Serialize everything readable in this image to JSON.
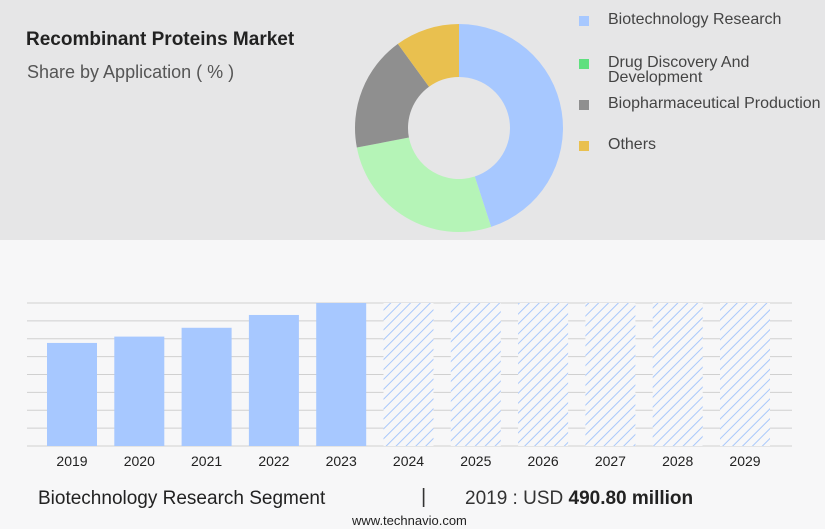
{
  "title": "Recombinant Proteins Market",
  "subtitle": "Share by Application ( % )",
  "footer": {
    "segment": "Biotechnology Research Segment",
    "divider": "|",
    "value_prefix": "2019 : USD",
    "value": "490.80 million",
    "url": "www.technavio.com"
  },
  "colors": {
    "biotech": "#a7c8ff",
    "drug": "#b5f4b7",
    "biopharma": "#8f8f8f",
    "others": "#e9c04f",
    "forecast_hatch": "#a9c8fb"
  },
  "chart_data": [
    {
      "type": "pie",
      "style": "donut",
      "legend_position": "right",
      "series": [
        {
          "name": "Biotechnology Research",
          "value": 45,
          "color": "#a7c8ff",
          "legend_swatch": "#a7c8ff"
        },
        {
          "name": "Drug Discovery And Development",
          "value": 27,
          "color": "#b5f4b7",
          "legend_swatch": "#5fe07f"
        },
        {
          "name": "Biopharmaceutical Production",
          "value": 18,
          "color": "#8f8f8f",
          "legend_swatch": "#8f8f8f"
        },
        {
          "name": "Others",
          "value": 10,
          "color": "#e9c04f",
          "legend_swatch": "#e9c04f"
        }
      ]
    },
    {
      "type": "bar",
      "categories": [
        "2019",
        "2020",
        "2021",
        "2022",
        "2023",
        "2024",
        "2025",
        "2026",
        "2027",
        "2028",
        "2029"
      ],
      "values": [
        490.8,
        521,
        563,
        624,
        681,
        681,
        681,
        681,
        681,
        681,
        681
      ],
      "forecast_from": "2024",
      "ylim": [
        0,
        681
      ],
      "grid": true
    }
  ]
}
